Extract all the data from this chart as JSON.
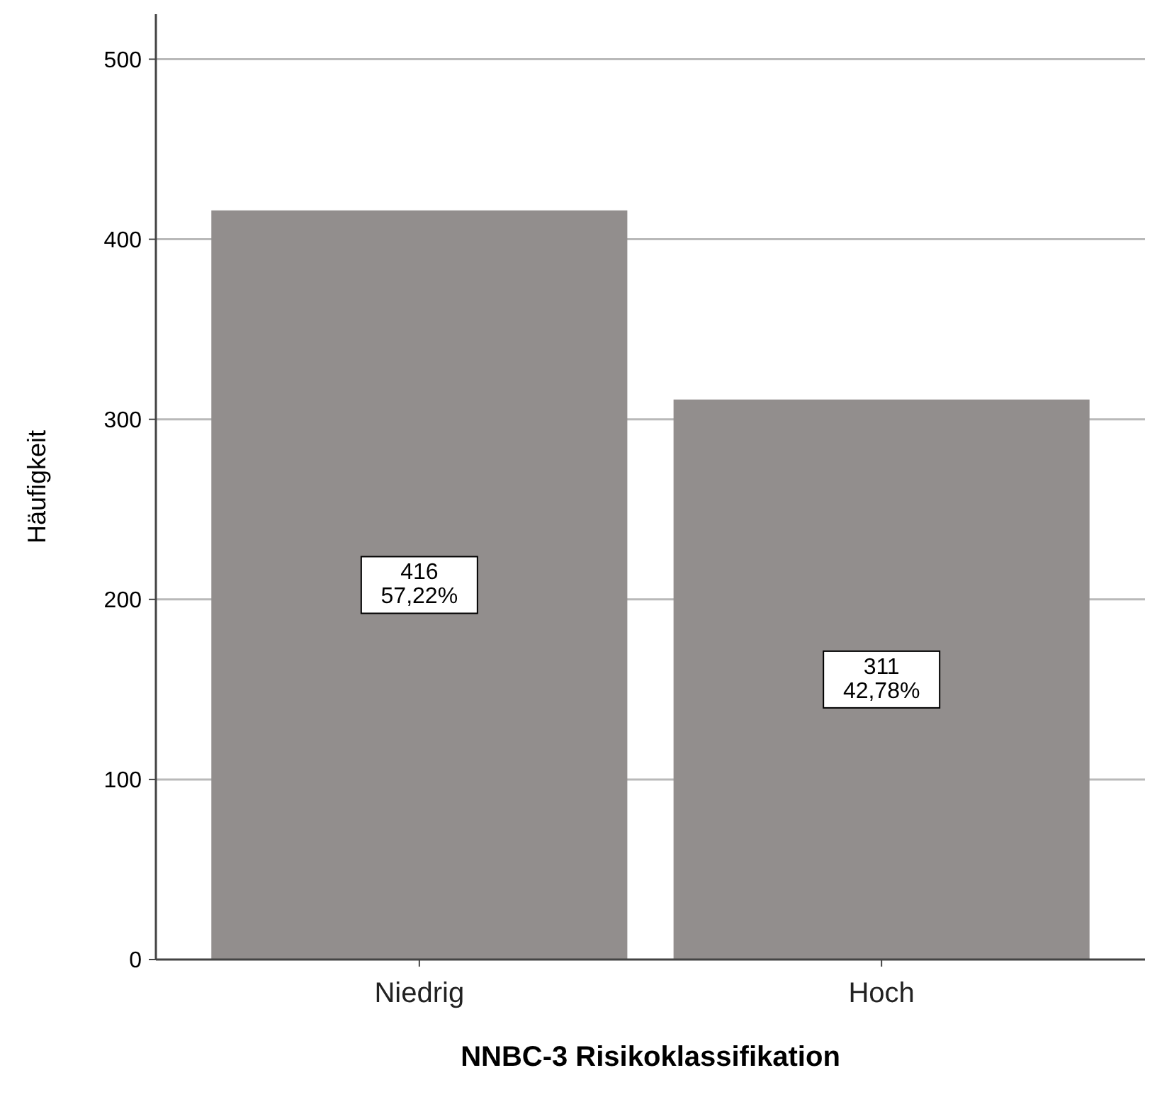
{
  "chart_data": {
    "type": "bar",
    "xlabel": "NNBC-3 Risikoklassifikation",
    "ylabel": "Häufigkeit",
    "categories": [
      "Niedrig",
      "Hoch"
    ],
    "values": [
      416,
      311
    ],
    "value_labels": [
      "416\n57,22%",
      "311\n42,78%"
    ],
    "color": "#928e8d",
    "ylim": [
      0,
      525
    ],
    "yticks": [
      0,
      100,
      200,
      300,
      400,
      500
    ],
    "grid": "y"
  }
}
